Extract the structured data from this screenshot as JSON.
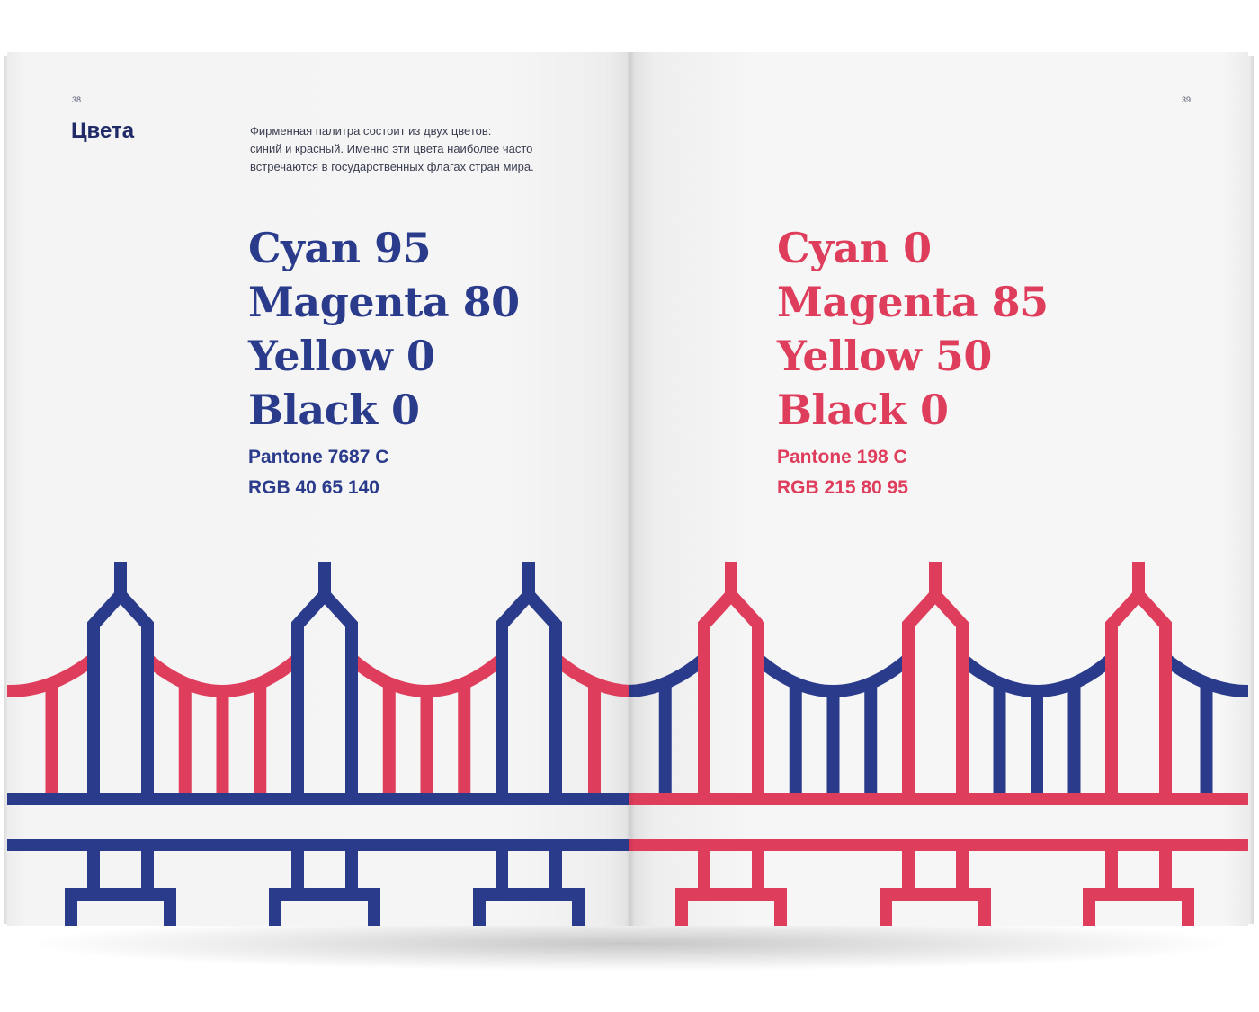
{
  "spread": {
    "left_page": {
      "page_number": "38",
      "heading": "Цвета",
      "intro_lines": [
        "Фирменная палитра состоит из двух цветов:",
        "синий и красный. Именно эти цвета наиболее часто",
        "встречаются в государственных флагах стран мира."
      ],
      "color": {
        "hex": "#2a3b8c",
        "cyan": "Cyan 95",
        "magenta": "Magenta 80",
        "yellow": "Yellow 0",
        "black": "Black 0",
        "pantone": "Pantone 7687 C",
        "rgb": "RGB 40 65 140"
      }
    },
    "right_page": {
      "page_number": "39",
      "color": {
        "hex": "#df3d5c",
        "cyan": "Cyan 0",
        "magenta": "Magenta 85",
        "yellow": "Yellow 50",
        "black": "Black 0",
        "pantone": "Pantone 198 C",
        "rgb": "RGB 215 80 95"
      }
    },
    "illustration": {
      "subject": "bridge-pattern",
      "left_tower_color": "#2a3b8c",
      "left_cable_color": "#df3d5c",
      "right_tower_color": "#df3d5c",
      "right_cable_color": "#2a3b8c"
    }
  }
}
